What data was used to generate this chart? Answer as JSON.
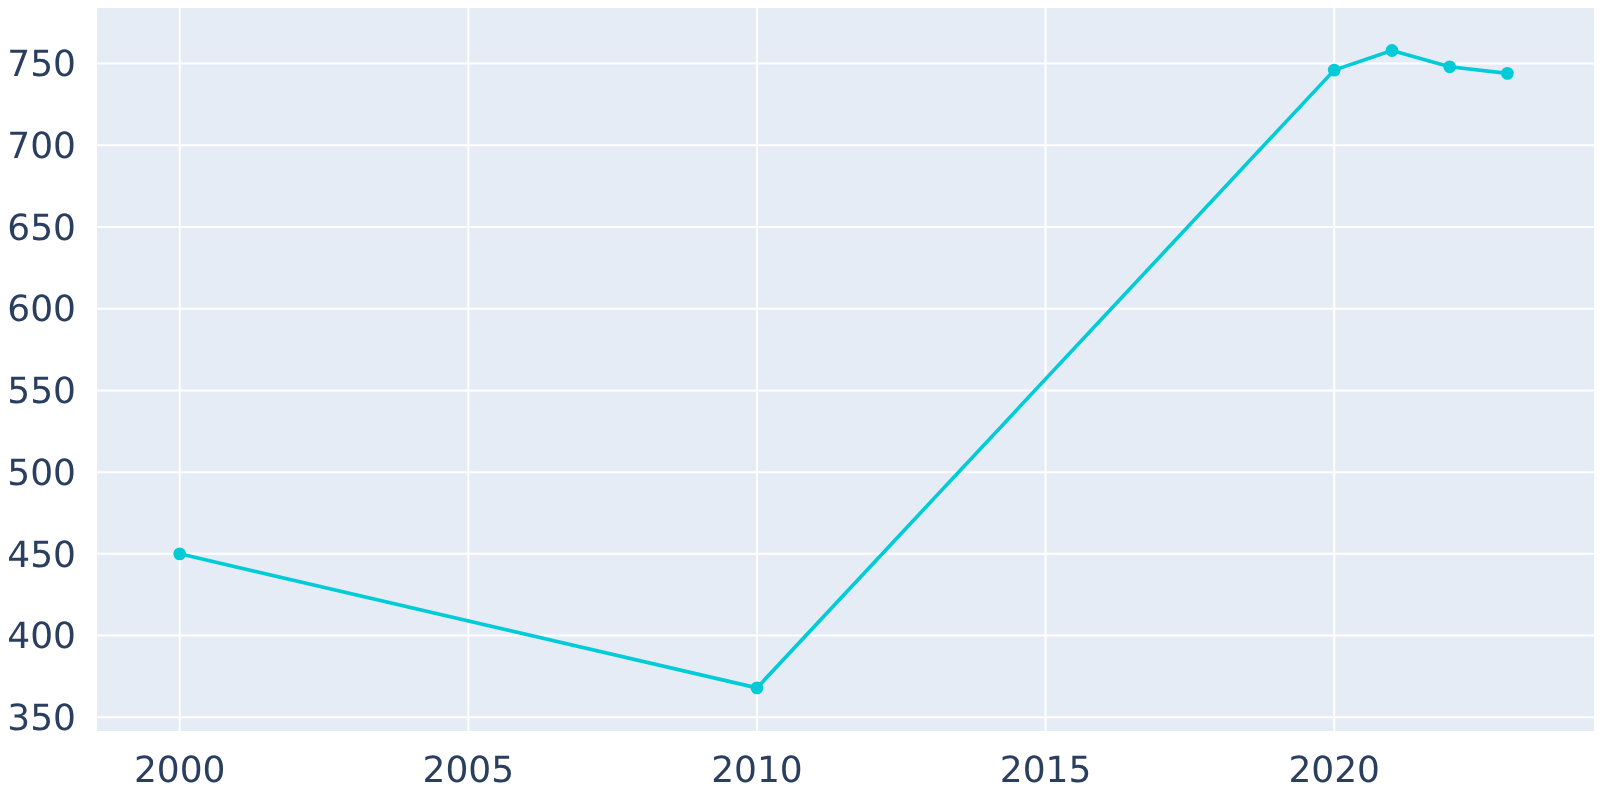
{
  "chart_data": {
    "type": "line",
    "x": [
      2000,
      2010,
      2020,
      2021,
      2022,
      2023
    ],
    "series": [
      {
        "color": "#00cbd6",
        "values": [
          450,
          368,
          746,
          758,
          748,
          744
        ]
      }
    ],
    "xlim": [
      1998.55,
      2024.5
    ],
    "xticks": [
      2000,
      2005,
      2010,
      2015,
      2020
    ],
    "ylim": [
      341,
      784
    ],
    "yticks": [
      350,
      400,
      450,
      500,
      550,
      600,
      650,
      700,
      750
    ],
    "grid": true,
    "marker": "circle",
    "line_style": "solid"
  }
}
